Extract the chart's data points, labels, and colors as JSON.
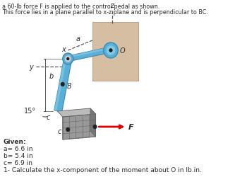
{
  "title_line1": "a 60-lb force F is applied to the control pedal as shown.",
  "title_line2": "This force lies in a plane parallel to x-z plane and is perpendicular to BC.",
  "given_label": "Given:",
  "given_a": "a= 6.6 in",
  "given_b": "b= 5.4 in",
  "given_c": "c= 6.9 in",
  "question": "1- Calculate the x-component of the moment about O in lb.in.",
  "angle_label": "15°",
  "force_label": "F",
  "bg_color": "#ffffff",
  "text_color": "#2c2c2c",
  "arm_color_light": "#82c8e8",
  "arm_color_mid": "#5bafd6",
  "arm_color_dark": "#3a8ab0",
  "pedal_color": "#999999",
  "pedal_dark": "#666666",
  "force_color": "#dd0000",
  "plane_color": "#c8a882",
  "plane_edge": "#b09070",
  "dim_color": "#555555",
  "coord_color": "#555555"
}
